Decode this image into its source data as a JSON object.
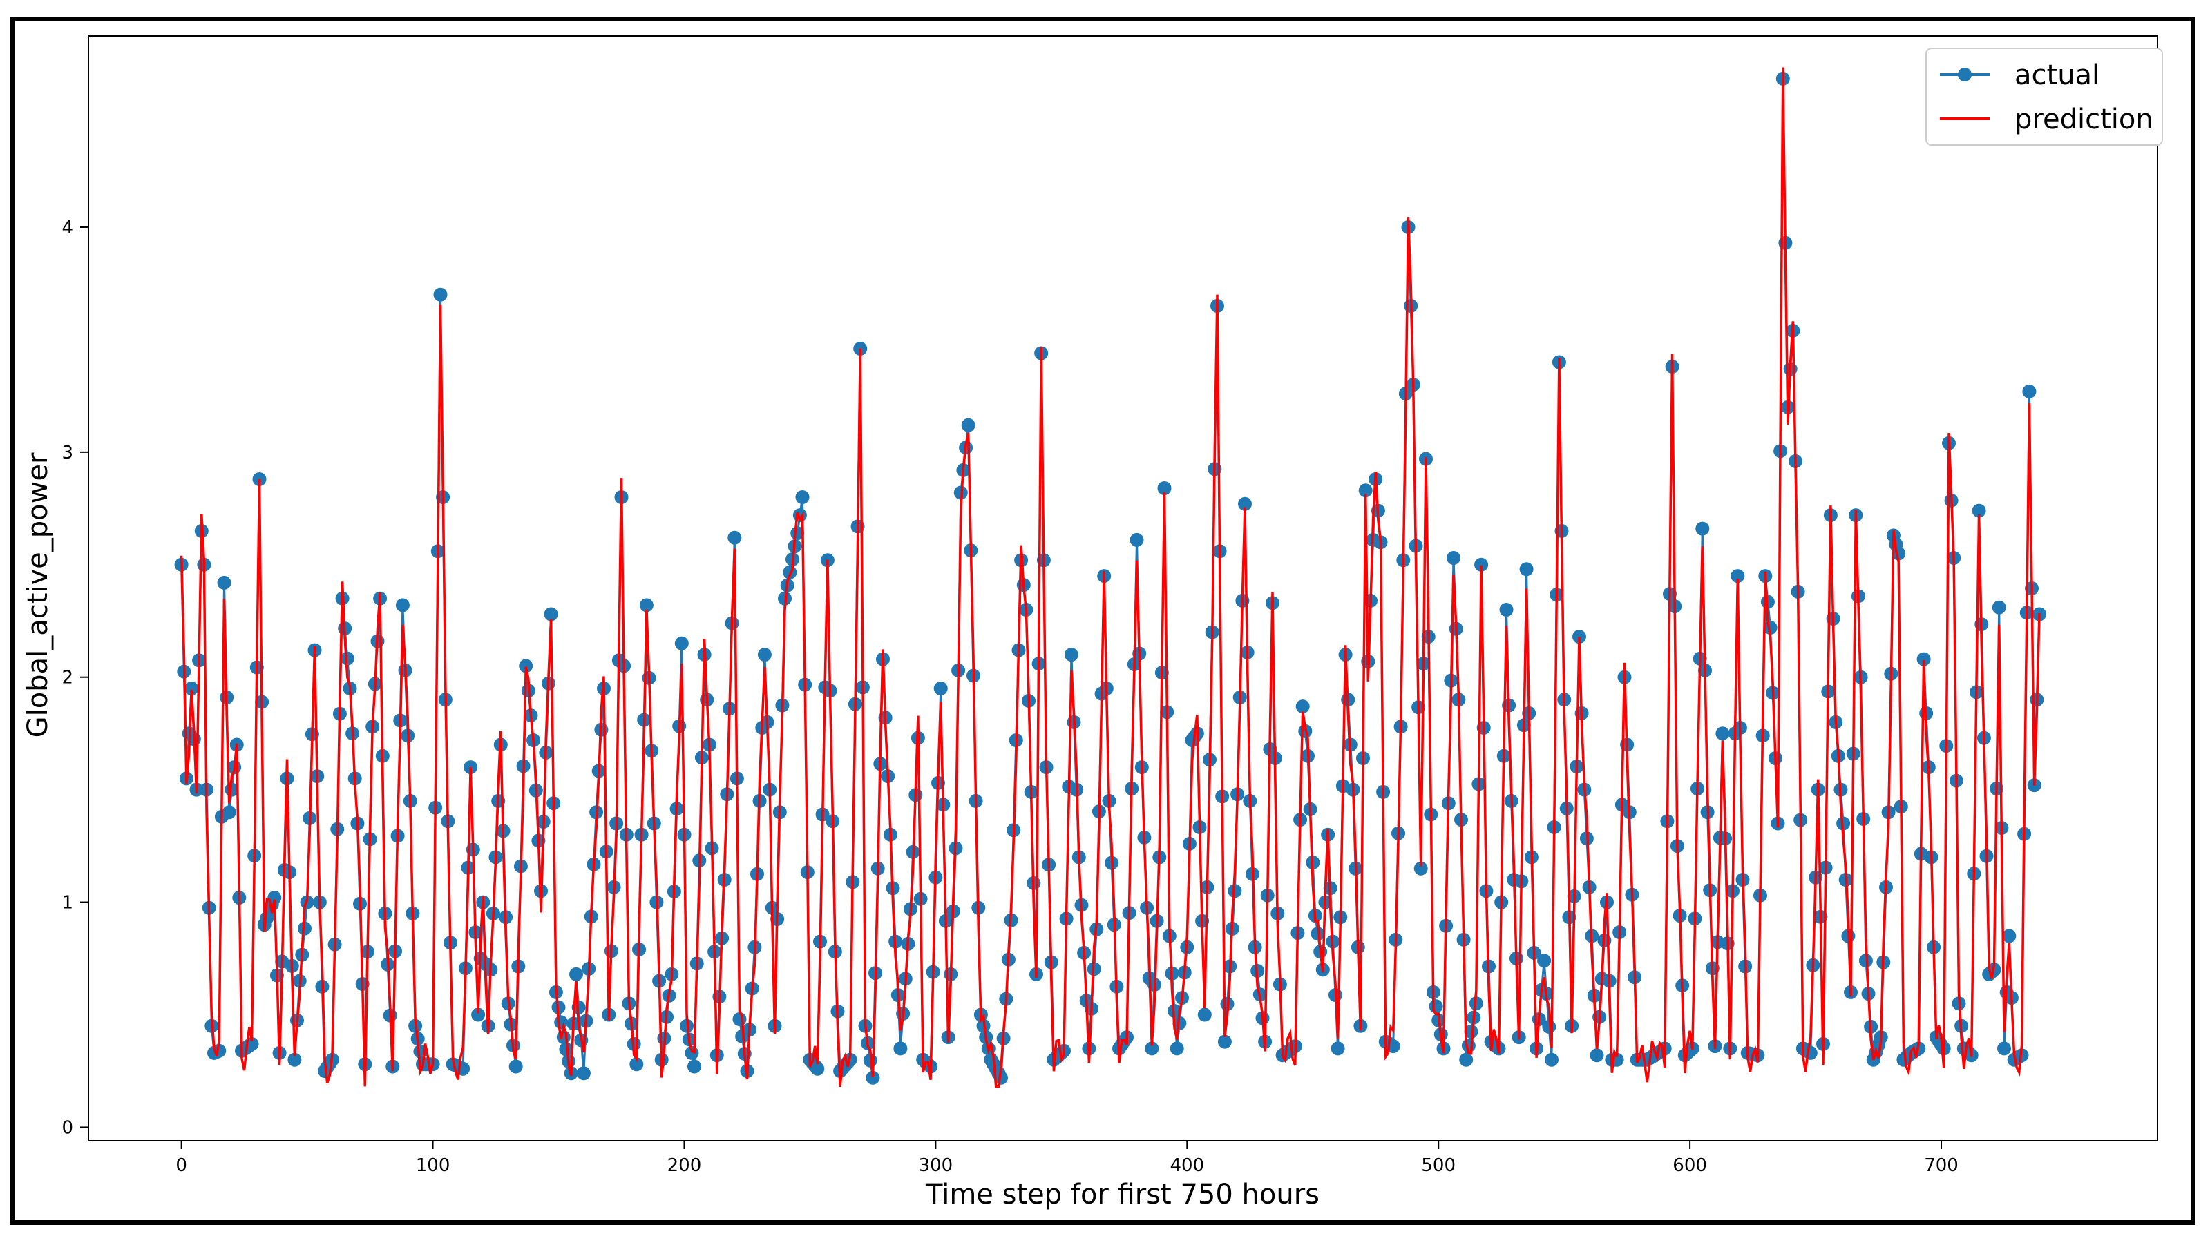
{
  "chart_data": {
    "type": "line",
    "title": "",
    "xlabel": "Time step for first 750 hours",
    "ylabel": "Global_active_power",
    "xlim": [
      -37,
      786
    ],
    "ylim": [
      -0.06,
      4.85
    ],
    "xticks": [
      0,
      100,
      200,
      300,
      400,
      500,
      600,
      700
    ],
    "yticks": [
      0,
      1,
      2,
      3,
      4
    ],
    "grid": false,
    "legend_position": "top-right",
    "colors": {
      "actual": "#1f77b4",
      "prediction": "#ff0000"
    },
    "anchors": [
      [
        0,
        2.5
      ],
      [
        2,
        1.55
      ],
      [
        4,
        1.95
      ],
      [
        6,
        1.5
      ],
      [
        8,
        2.65
      ],
      [
        9,
        2.5
      ],
      [
        10,
        1.5
      ],
      [
        12,
        0.45
      ],
      [
        13,
        0.33
      ],
      [
        15,
        0.34
      ],
      [
        17,
        2.42
      ],
      [
        19,
        1.4
      ],
      [
        22,
        1.7
      ],
      [
        24,
        0.34
      ],
      [
        28,
        0.37
      ],
      [
        31,
        2.88
      ],
      [
        33,
        0.9
      ],
      [
        37,
        1.02
      ],
      [
        39,
        0.33
      ],
      [
        42,
        1.55
      ],
      [
        45,
        0.3
      ],
      [
        47,
        0.65
      ],
      [
        50,
        1.0
      ],
      [
        53,
        2.12
      ],
      [
        55,
        1.0
      ],
      [
        57,
        0.25
      ],
      [
        60,
        0.3
      ],
      [
        64,
        2.35
      ],
      [
        67,
        1.95
      ],
      [
        70,
        1.35
      ],
      [
        73,
        0.28
      ],
      [
        76,
        1.78
      ],
      [
        79,
        2.35
      ],
      [
        81,
        0.95
      ],
      [
        84,
        0.27
      ],
      [
        88,
        2.32
      ],
      [
        91,
        1.45
      ],
      [
        93,
        0.45
      ],
      [
        96,
        0.28
      ],
      [
        100,
        0.28
      ],
      [
        103,
        3.7
      ],
      [
        105,
        1.9
      ],
      [
        108,
        0.28
      ],
      [
        112,
        0.26
      ],
      [
        115,
        1.6
      ],
      [
        118,
        0.5
      ],
      [
        120,
        1.0
      ],
      [
        122,
        0.45
      ],
      [
        124,
        0.95
      ],
      [
        127,
        1.7
      ],
      [
        130,
        0.55
      ],
      [
        133,
        0.27
      ],
      [
        137,
        2.05
      ],
      [
        140,
        1.72
      ],
      [
        143,
        1.05
      ],
      [
        147,
        2.28
      ],
      [
        149,
        0.6
      ],
      [
        152,
        0.4
      ],
      [
        155,
        0.24
      ],
      [
        157,
        0.68
      ],
      [
        160,
        0.24
      ],
      [
        165,
        1.4
      ],
      [
        168,
        1.95
      ],
      [
        170,
        0.5
      ],
      [
        173,
        1.35
      ],
      [
        175,
        2.8
      ],
      [
        178,
        0.55
      ],
      [
        181,
        0.28
      ],
      [
        185,
        2.32
      ],
      [
        188,
        1.35
      ],
      [
        191,
        0.3
      ],
      [
        195,
        0.68
      ],
      [
        199,
        2.15
      ],
      [
        201,
        0.45
      ],
      [
        204,
        0.27
      ],
      [
        208,
        2.1
      ],
      [
        210,
        1.7
      ],
      [
        213,
        0.32
      ],
      [
        216,
        1.1
      ],
      [
        220,
        2.62
      ],
      [
        222,
        0.48
      ],
      [
        225,
        0.25
      ],
      [
        228,
        0.8
      ],
      [
        232,
        2.1
      ],
      [
        234,
        1.5
      ],
      [
        236,
        0.45
      ],
      [
        240,
        2.35
      ],
      [
        245,
        2.64
      ],
      [
        247,
        2.8
      ],
      [
        250,
        0.3
      ],
      [
        253,
        0.26
      ],
      [
        257,
        2.52
      ],
      [
        260,
        0.78
      ],
      [
        262,
        0.25
      ],
      [
        266,
        0.3
      ],
      [
        270,
        3.46
      ],
      [
        272,
        0.45
      ],
      [
        275,
        0.22
      ],
      [
        279,
        2.08
      ],
      [
        282,
        1.3
      ],
      [
        286,
        0.35
      ],
      [
        290,
        0.97
      ],
      [
        293,
        1.73
      ],
      [
        295,
        0.3
      ],
      [
        298,
        0.27
      ],
      [
        302,
        1.95
      ],
      [
        305,
        0.4
      ],
      [
        308,
        1.24
      ],
      [
        310,
        2.82
      ],
      [
        313,
        3.12
      ],
      [
        316,
        1.45
      ],
      [
        318,
        0.5
      ],
      [
        322,
        0.3
      ],
      [
        326,
        0.22
      ],
      [
        330,
        0.92
      ],
      [
        334,
        2.52
      ],
      [
        336,
        2.3
      ],
      [
        340,
        0.68
      ],
      [
        342,
        3.44
      ],
      [
        344,
        1.6
      ],
      [
        347,
        0.3
      ],
      [
        351,
        0.34
      ],
      [
        354,
        2.1
      ],
      [
        357,
        1.2
      ],
      [
        361,
        0.35
      ],
      [
        364,
        0.88
      ],
      [
        367,
        2.45
      ],
      [
        369,
        1.45
      ],
      [
        373,
        0.35
      ],
      [
        376,
        0.4
      ],
      [
        380,
        2.61
      ],
      [
        382,
        1.6
      ],
      [
        386,
        0.35
      ],
      [
        389,
        1.2
      ],
      [
        391,
        2.84
      ],
      [
        393,
        0.85
      ],
      [
        396,
        0.35
      ],
      [
        400,
        0.8
      ],
      [
        402,
        1.72
      ],
      [
        404,
        1.75
      ],
      [
        407,
        0.5
      ],
      [
        410,
        2.2
      ],
      [
        412,
        3.65
      ],
      [
        415,
        0.38
      ],
      [
        419,
        1.05
      ],
      [
        423,
        2.77
      ],
      [
        425,
        1.45
      ],
      [
        427,
        0.8
      ],
      [
        431,
        0.38
      ],
      [
        434,
        2.33
      ],
      [
        436,
        0.95
      ],
      [
        438,
        0.32
      ],
      [
        443,
        0.36
      ],
      [
        446,
        1.87
      ],
      [
        448,
        1.65
      ],
      [
        451,
        0.94
      ],
      [
        454,
        0.7
      ],
      [
        456,
        1.3
      ],
      [
        460,
        0.35
      ],
      [
        463,
        2.1
      ],
      [
        466,
        1.5
      ],
      [
        469,
        0.45
      ],
      [
        471,
        2.83
      ],
      [
        472,
        2.07
      ],
      [
        475,
        2.88
      ],
      [
        477,
        2.6
      ],
      [
        479,
        0.38
      ],
      [
        482,
        0.36
      ],
      [
        485,
        1.78
      ],
      [
        488,
        4.0
      ],
      [
        490,
        3.3
      ],
      [
        493,
        1.15
      ],
      [
        495,
        2.97
      ],
      [
        498,
        0.6
      ],
      [
        502,
        0.35
      ],
      [
        506,
        2.53
      ],
      [
        508,
        1.9
      ],
      [
        511,
        0.3
      ],
      [
        515,
        0.55
      ],
      [
        517,
        2.5
      ],
      [
        519,
        1.05
      ],
      [
        521,
        0.38
      ],
      [
        524,
        0.35
      ],
      [
        527,
        2.3
      ],
      [
        529,
        1.45
      ],
      [
        532,
        0.4
      ],
      [
        535,
        2.48
      ],
      [
        537,
        1.2
      ],
      [
        539,
        0.35
      ],
      [
        542,
        0.74
      ],
      [
        545,
        0.3
      ],
      [
        548,
        3.4
      ],
      [
        550,
        1.9
      ],
      [
        553,
        0.45
      ],
      [
        556,
        2.18
      ],
      [
        558,
        1.5
      ],
      [
        561,
        0.85
      ],
      [
        563,
        0.32
      ],
      [
        567,
        1.0
      ],
      [
        569,
        0.3
      ],
      [
        571,
        0.3
      ],
      [
        574,
        2.0
      ],
      [
        576,
        1.4
      ],
      [
        579,
        0.3
      ],
      [
        583,
        0.3
      ],
      [
        586,
        0.32
      ],
      [
        590,
        0.35
      ],
      [
        593,
        3.38
      ],
      [
        595,
        1.25
      ],
      [
        598,
        0.32
      ],
      [
        601,
        0.35
      ],
      [
        605,
        2.66
      ],
      [
        607,
        1.4
      ],
      [
        610,
        0.36
      ],
      [
        613,
        1.75
      ],
      [
        616,
        0.35
      ],
      [
        619,
        2.45
      ],
      [
        621,
        1.1
      ],
      [
        623,
        0.33
      ],
      [
        627,
        0.32
      ],
      [
        630,
        2.45
      ],
      [
        632,
        2.22
      ],
      [
        635,
        1.35
      ],
      [
        637,
        4.66
      ],
      [
        639,
        3.2
      ],
      [
        641,
        3.54
      ],
      [
        643,
        2.38
      ],
      [
        645,
        0.35
      ],
      [
        648,
        0.33
      ],
      [
        651,
        1.5
      ],
      [
        653,
        0.37
      ],
      [
        656,
        2.72
      ],
      [
        658,
        1.8
      ],
      [
        661,
        1.35
      ],
      [
        664,
        0.6
      ],
      [
        666,
        2.72
      ],
      [
        668,
        2.0
      ],
      [
        670,
        0.74
      ],
      [
        673,
        0.3
      ],
      [
        676,
        0.4
      ],
      [
        679,
        1.4
      ],
      [
        681,
        2.63
      ],
      [
        683,
        2.55
      ],
      [
        685,
        0.3
      ],
      [
        688,
        0.33
      ],
      [
        691,
        0.35
      ],
      [
        693,
        2.08
      ],
      [
        695,
        1.6
      ],
      [
        698,
        0.4
      ],
      [
        701,
        0.35
      ],
      [
        703,
        3.04
      ],
      [
        705,
        2.53
      ],
      [
        707,
        0.55
      ],
      [
        709,
        0.35
      ],
      [
        712,
        0.32
      ],
      [
        715,
        2.74
      ],
      [
        717,
        1.73
      ],
      [
        719,
        0.68
      ],
      [
        721,
        0.7
      ],
      [
        723,
        2.31
      ],
      [
        725,
        0.35
      ],
      [
        727,
        0.85
      ],
      [
        729,
        0.3
      ],
      [
        732,
        0.32
      ],
      [
        735,
        3.27
      ],
      [
        737,
        1.52
      ],
      [
        739,
        2.28
      ]
    ]
  },
  "legend": {
    "actual_label": "actual",
    "prediction_label": "prediction"
  }
}
